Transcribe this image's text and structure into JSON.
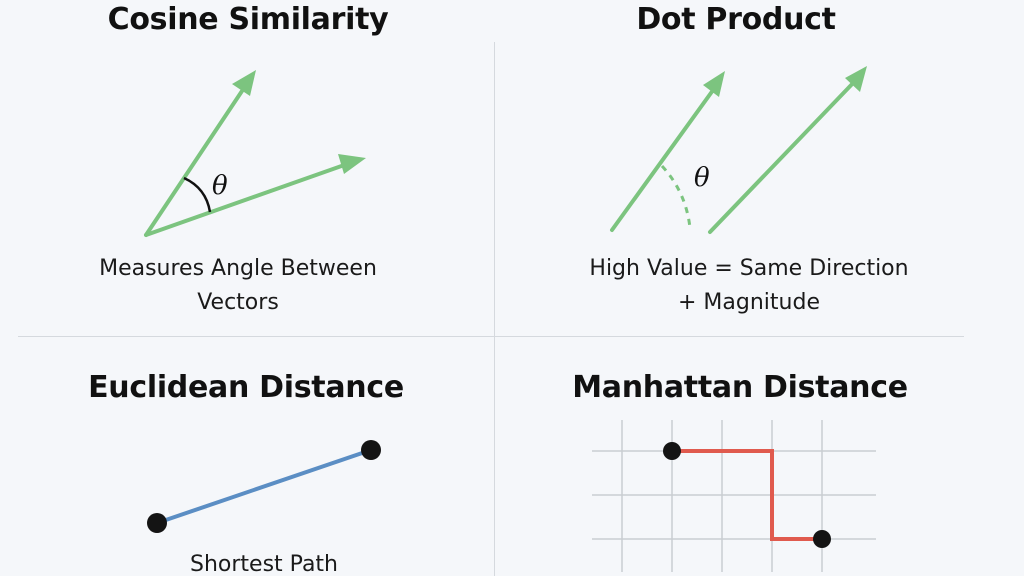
{
  "panels": {
    "cosine": {
      "title": "Cosine Similarity",
      "caption_line1": "Measures Angle Between",
      "caption_line2": "Vectors",
      "angle_symbol": "θ"
    },
    "dot": {
      "title": "Dot Product",
      "caption_line1": "High Value = Same Direction",
      "caption_line2": "+ Magnitude",
      "angle_symbol": "θ"
    },
    "euclidean": {
      "title": "Euclidean Distance",
      "caption_line1": "Shortest Path"
    },
    "manhattan": {
      "title": "Manhattan Distance"
    }
  },
  "colors": {
    "vector": "#7cc47f",
    "euclidean_line": "#5b8ec4",
    "manhattan_path": "#e05a4e",
    "grid": "#c9cdd2",
    "point": "#141414",
    "background": "#f5f7fa"
  }
}
